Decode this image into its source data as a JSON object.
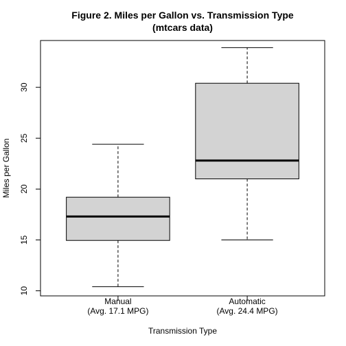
{
  "chart_data": {
    "type": "boxplot",
    "title": "Figure 2. Miles per Gallon vs. Transmission Type",
    "subtitle": "(mtcars data)",
    "xlabel": "Transmission Type",
    "ylabel": "Miles per Gallon",
    "ylim": [
      9.5,
      34.6
    ],
    "yticks": [
      10,
      15,
      20,
      25,
      30
    ],
    "categories": [
      {
        "line1": "Manual",
        "line2": "(Avg. 17.1 MPG)"
      },
      {
        "line1": "Automatic",
        "line2": "(Avg. 24.4 MPG)"
      }
    ],
    "boxes": [
      {
        "min": 10.4,
        "q1": 14.95,
        "median": 17.3,
        "q3": 19.2,
        "max": 24.4
      },
      {
        "min": 15.0,
        "q1": 21.0,
        "median": 22.8,
        "q3": 30.4,
        "max": 33.9
      }
    ],
    "box_fill": "#d3d3d3",
    "grid": false,
    "legend": "none"
  }
}
